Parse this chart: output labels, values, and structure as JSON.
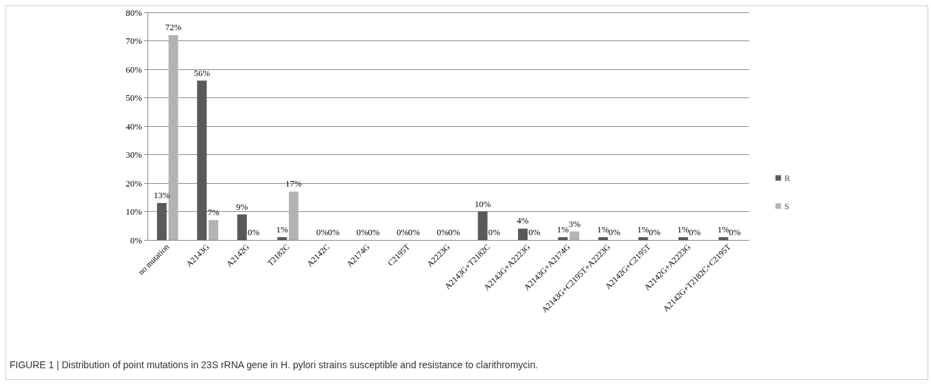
{
  "chart_data": {
    "type": "bar",
    "categories": [
      "no mutation",
      "A2143G",
      "A2142G",
      "T2182C",
      "A2142C",
      "A2174G",
      "C2195T",
      "A2223G",
      "A2143G+T2182C",
      "A2143G+A2223G",
      "A2143G+A2174G",
      "A2143G+C2195T+A2223G",
      "A2142G+C2195T",
      "A2142G+A2223G",
      "A2142G+T2182C+C2195T"
    ],
    "series": [
      {
        "name": "R",
        "color": "#595959",
        "values": [
          13,
          56,
          9,
          1,
          0,
          0,
          0,
          0,
          10,
          4,
          1,
          1,
          1,
          1,
          1
        ],
        "value_labels": [
          "13%",
          "56%",
          "9%",
          "1%",
          "0%",
          "0%",
          "0%",
          "0%",
          "10%",
          "4%",
          "1%",
          "1%",
          "1%",
          "1%",
          "1%"
        ]
      },
      {
        "name": "S",
        "color": "#b3b3b3",
        "values": [
          72,
          7,
          0,
          17,
          0,
          0,
          0,
          0,
          0,
          0,
          3,
          0,
          0,
          0,
          0
        ],
        "value_labels": [
          "72%",
          "7%",
          "0%",
          "17%",
          "0%",
          "0%",
          "0%",
          "0%",
          "0%",
          "0%",
          "3%",
          "0%",
          "0%",
          "0%",
          "0%"
        ]
      }
    ],
    "ylim": [
      0,
      80
    ],
    "yticks": [
      {
        "value": 0,
        "label": "0%"
      },
      {
        "value": 10,
        "label": "10%"
      },
      {
        "value": 20,
        "label": "20%"
      },
      {
        "value": 30,
        "label": "30%"
      },
      {
        "value": 40,
        "label": "40%"
      },
      {
        "value": 50,
        "label": "50%"
      },
      {
        "value": 60,
        "label": "60%"
      },
      {
        "value": 70,
        "label": "70%"
      },
      {
        "value": 80,
        "label": "80%"
      }
    ],
    "grid": "y",
    "legend": "right",
    "annotations": [
      "FIGURE 1 | Distribution of point mutations in 23S rRNA gene in H. pylori strains susceptible and resistance to clarithromycin."
    ]
  }
}
